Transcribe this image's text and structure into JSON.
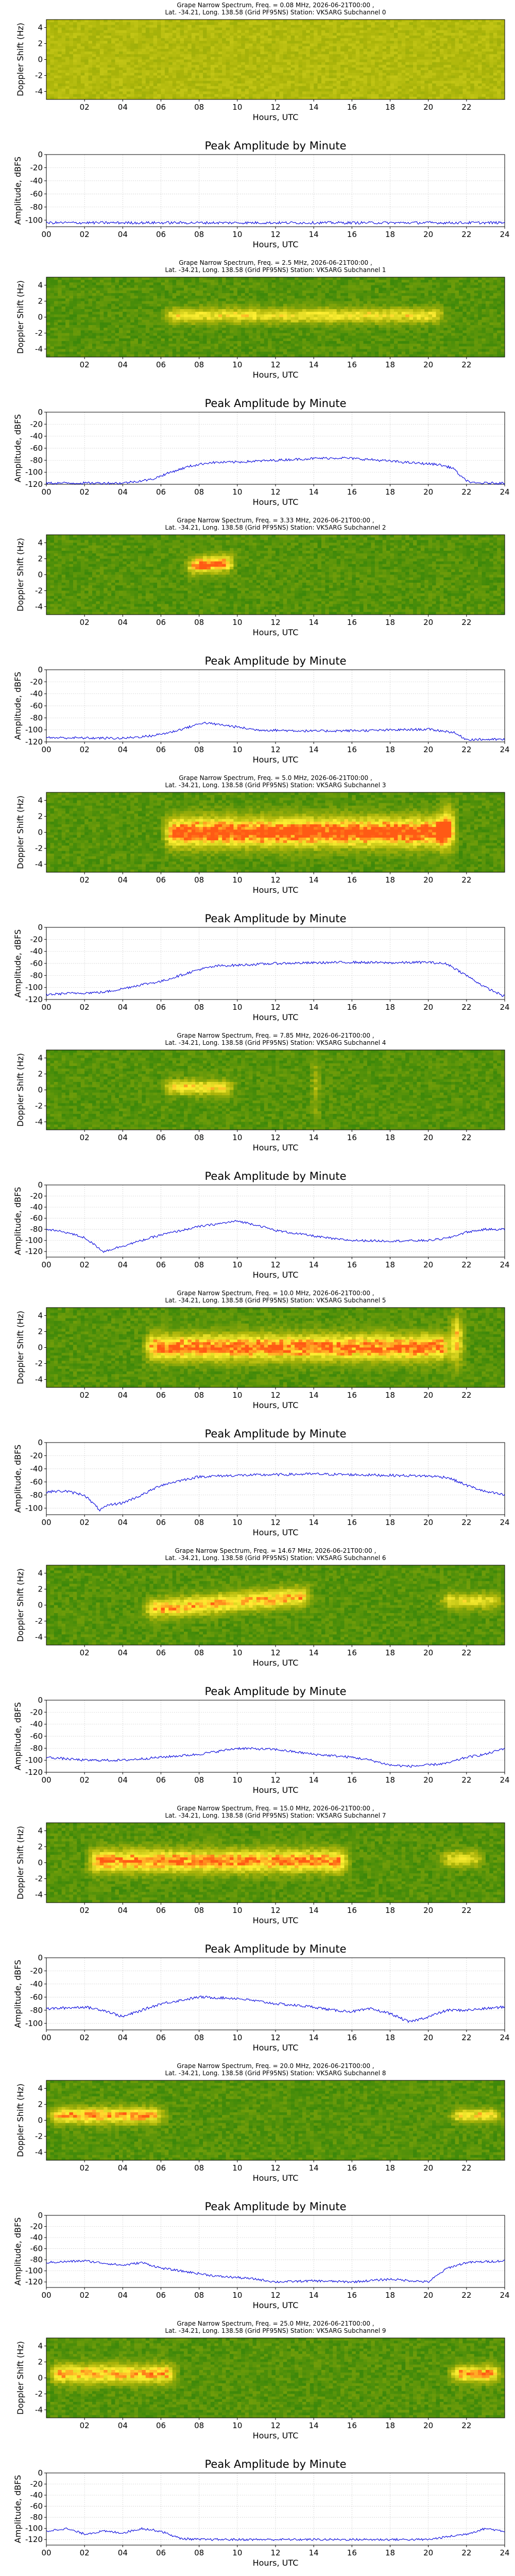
{
  "spectrogram_title_lines": [
    "Grape Narrow Spectrum, Freq. = {freq} MHz, 2026-06-21T00:00 ,",
    "Lat. -34.21, Long. 138.58 (Grid PF95NS) Station: VK5ARG Subchannel {sub}"
  ],
  "chart_data": [
    {
      "type": "heatmap",
      "freq": "0.08",
      "sub": "0",
      "xlabel": "Hours, UTC",
      "ylabel": "Doppler Shift (Hz)",
      "x_ticks": [
        "02",
        "04",
        "06",
        "08",
        "10",
        "12",
        "14",
        "16",
        "18",
        "20",
        "22"
      ],
      "y_ticks": [
        "4",
        "2",
        "0",
        "-2",
        "-4"
      ],
      "xlim": [
        0,
        24
      ],
      "ylim": [
        -5,
        5
      ],
      "signal": "none (noise)"
    },
    {
      "type": "line",
      "title": "Peak Amplitude by Minute",
      "xlabel": "Hours, UTC",
      "ylabel": "Amplitude, dBFS",
      "ylim": [
        -110,
        0
      ],
      "y_ticks": [
        "0",
        "-20",
        "-40",
        "-60",
        "-80",
        "-100"
      ],
      "x_ticks": [
        "00",
        "02",
        "04",
        "06",
        "08",
        "10",
        "12",
        "14",
        "16",
        "18",
        "20",
        "22",
        "24"
      ],
      "series": [
        {
          "x": [
            0,
            24
          ],
          "y": [
            -104,
            -104
          ]
        }
      ]
    },
    {
      "type": "heatmap",
      "freq": "2.5",
      "sub": "1",
      "xlabel": "Hours, UTC",
      "ylabel": "Doppler Shift (Hz)",
      "x_ticks": [
        "02",
        "04",
        "06",
        "08",
        "10",
        "12",
        "14",
        "16",
        "18",
        "20",
        "22"
      ],
      "y_ticks": [
        "4",
        "2",
        "0",
        "-2",
        "-4"
      ],
      "xlim": [
        0,
        24
      ],
      "ylim": [
        -5,
        5
      ],
      "signal": "band 06-21 UTC near 0 Hz"
    },
    {
      "type": "line",
      "title": "Peak Amplitude by Minute",
      "xlabel": "Hours, UTC",
      "ylabel": "Amplitude, dBFS",
      "ylim": [
        -120,
        0
      ],
      "y_ticks": [
        "0",
        "-20",
        "-40",
        "-60",
        "-80",
        "-100",
        "-120"
      ],
      "x_ticks": [
        "00",
        "02",
        "04",
        "06",
        "08",
        "10",
        "12",
        "14",
        "16",
        "18",
        "20",
        "22",
        "24"
      ],
      "series": [
        {
          "x": [
            0,
            4,
            5.5,
            6.5,
            7.5,
            8.5,
            10,
            12,
            14,
            15.5,
            17,
            19,
            20.5,
            21.3,
            21.8,
            22.3,
            24
          ],
          "y": [
            -118,
            -118,
            -112,
            -100,
            -90,
            -84,
            -83,
            -80,
            -77,
            -76,
            -79,
            -84,
            -87,
            -93,
            -110,
            -118,
            -118
          ]
        }
      ]
    },
    {
      "type": "heatmap",
      "freq": "3.33",
      "sub": "2",
      "xlabel": "Hours, UTC",
      "ylabel": "Doppler Shift (Hz)",
      "x_ticks": [
        "02",
        "04",
        "06",
        "08",
        "10",
        "12",
        "14",
        "16",
        "18",
        "20",
        "22"
      ],
      "y_ticks": [
        "4",
        "2",
        "0",
        "-2",
        "-4"
      ],
      "xlim": [
        0,
        24
      ],
      "ylim": [
        -5,
        5
      ],
      "signal": "blob 07-10 UTC"
    },
    {
      "type": "line",
      "title": "Peak Amplitude by Minute",
      "xlabel": "Hours, UTC",
      "ylabel": "Amplitude, dBFS",
      "ylim": [
        -120,
        0
      ],
      "y_ticks": [
        "0",
        "-20",
        "-40",
        "-60",
        "-80",
        "-100",
        "-120"
      ],
      "x_ticks": [
        "00",
        "02",
        "04",
        "06",
        "08",
        "10",
        "12",
        "14",
        "16",
        "18",
        "20",
        "22",
        "24"
      ],
      "series": [
        {
          "x": [
            0,
            4,
            5.5,
            6.5,
            7.5,
            8.2,
            9.5,
            11,
            14,
            17,
            20,
            21.3,
            22,
            24
          ],
          "y": [
            -113,
            -114,
            -110,
            -104,
            -95,
            -88,
            -93,
            -100,
            -102,
            -101,
            -99,
            -104,
            -116,
            -116
          ]
        }
      ]
    },
    {
      "type": "heatmap",
      "freq": "5.0",
      "sub": "3",
      "xlabel": "Hours, UTC",
      "ylabel": "Doppler Shift (Hz)",
      "x_ticks": [
        "02",
        "04",
        "06",
        "08",
        "10",
        "12",
        "14",
        "16",
        "18",
        "20",
        "22"
      ],
      "y_ticks": [
        "4",
        "2",
        "0",
        "-2",
        "-4"
      ],
      "xlim": [
        0,
        24
      ],
      "ylim": [
        -5,
        5
      ],
      "signal": "strong band 06-21.5 UTC"
    },
    {
      "type": "line",
      "title": "Peak Amplitude by Minute",
      "xlabel": "Hours, UTC",
      "ylabel": "Amplitude, dBFS",
      "ylim": [
        -120,
        0
      ],
      "y_ticks": [
        "0",
        "-20",
        "-40",
        "-60",
        "-80",
        "-100",
        "-120"
      ],
      "x_ticks": [
        "00",
        "02",
        "04",
        "06",
        "08",
        "10",
        "12",
        "14",
        "16",
        "18",
        "20",
        "22",
        "24"
      ],
      "series": [
        {
          "x": [
            0,
            1,
            3,
            4,
            5,
            6,
            7,
            8,
            9,
            10,
            12,
            14,
            16,
            18,
            20,
            21,
            22,
            23,
            24
          ],
          "y": [
            -112,
            -110,
            -108,
            -102,
            -95,
            -90,
            -80,
            -70,
            -64,
            -63,
            -60,
            -59,
            -58,
            -59,
            -58,
            -61,
            -80,
            -100,
            -115
          ]
        }
      ]
    },
    {
      "type": "heatmap",
      "freq": "7.85",
      "sub": "4",
      "xlabel": "Hours, UTC",
      "ylabel": "Doppler Shift (Hz)",
      "x_ticks": [
        "02",
        "04",
        "06",
        "08",
        "10",
        "12",
        "14",
        "16",
        "18",
        "20",
        "22"
      ],
      "y_ticks": [
        "4",
        "2",
        "0",
        "-2",
        "-4"
      ],
      "xlim": [
        0,
        24
      ],
      "ylim": [
        -5,
        5
      ],
      "signal": "patchy 06-15 UTC"
    },
    {
      "type": "line",
      "title": "Peak Amplitude by Minute",
      "xlabel": "Hours, UTC",
      "ylabel": "Amplitude, dBFS",
      "ylim": [
        -130,
        0
      ],
      "y_ticks": [
        "0",
        "-20",
        "-40",
        "-60",
        "-80",
        "-100",
        "-120"
      ],
      "x_ticks": [
        "00",
        "02",
        "04",
        "06",
        "08",
        "10",
        "12",
        "14",
        "16",
        "18",
        "20",
        "22",
        "24"
      ],
      "series": [
        {
          "x": [
            0,
            1,
            2,
            3,
            4,
            5,
            6,
            8,
            10,
            11,
            12,
            14,
            15,
            16,
            18,
            20,
            21,
            22,
            23,
            24
          ],
          "y": [
            -80,
            -85,
            -95,
            -120,
            -110,
            -100,
            -90,
            -75,
            -65,
            -72,
            -82,
            -92,
            -97,
            -100,
            -101,
            -100,
            -96,
            -85,
            -80,
            -80
          ]
        }
      ]
    },
    {
      "type": "heatmap",
      "freq": "10.0",
      "sub": "5",
      "xlabel": "Hours, UTC",
      "ylabel": "Doppler Shift (Hz)",
      "x_ticks": [
        "02",
        "04",
        "06",
        "08",
        "10",
        "12",
        "14",
        "16",
        "18",
        "20",
        "22"
      ],
      "y_ticks": [
        "4",
        "2",
        "0",
        "-2",
        "-4"
      ],
      "xlim": [
        0,
        24
      ],
      "ylim": [
        -5,
        5
      ],
      "signal": "band 05-22 UTC"
    },
    {
      "type": "line",
      "title": "Peak Amplitude by Minute",
      "xlabel": "Hours, UTC",
      "ylabel": "Amplitude, dBFS",
      "ylim": [
        -110,
        0
      ],
      "y_ticks": [
        "0",
        "-20",
        "-40",
        "-60",
        "-80",
        "-100"
      ],
      "x_ticks": [
        "00",
        "02",
        "04",
        "06",
        "08",
        "10",
        "12",
        "14",
        "16",
        "18",
        "20",
        "22",
        "24"
      ],
      "series": [
        {
          "x": [
            0,
            1,
            2,
            2.8,
            3.3,
            4,
            5,
            6,
            7,
            8,
            10,
            12,
            14,
            16,
            18,
            20,
            21,
            22,
            23,
            24
          ],
          "y": [
            -75,
            -74,
            -80,
            -103,
            -95,
            -92,
            -80,
            -65,
            -58,
            -52,
            -50,
            -49,
            -48,
            -49,
            -50,
            -51,
            -53,
            -65,
            -75,
            -80
          ]
        }
      ]
    },
    {
      "type": "heatmap",
      "freq": "14.67",
      "sub": "6",
      "xlabel": "Hours, UTC",
      "ylabel": "Doppler Shift (Hz)",
      "x_ticks": [
        "02",
        "04",
        "06",
        "08",
        "10",
        "12",
        "14",
        "16",
        "18",
        "20",
        "22"
      ],
      "y_ticks": [
        "4",
        "2",
        "0",
        "-2",
        "-4"
      ],
      "xlim": [
        0,
        24
      ],
      "ylim": [
        -5,
        5
      ],
      "signal": "rising band 04-14 UTC"
    },
    {
      "type": "line",
      "title": "Peak Amplitude by Minute",
      "xlabel": "Hours, UTC",
      "ylabel": "Amplitude, dBFS",
      "ylim": [
        -120,
        0
      ],
      "y_ticks": [
        "0",
        "-20",
        "-40",
        "-60",
        "-80",
        "-100",
        "-120"
      ],
      "x_ticks": [
        "00",
        "02",
        "04",
        "06",
        "08",
        "10",
        "12",
        "14",
        "16",
        "18",
        "20",
        "22",
        "24"
      ],
      "series": [
        {
          "x": [
            0,
            2,
            4,
            6,
            8,
            10,
            12,
            14,
            16,
            17,
            18,
            19,
            20,
            21,
            22,
            23,
            24
          ],
          "y": [
            -95,
            -100,
            -100,
            -95,
            -90,
            -80,
            -82,
            -90,
            -95,
            -100,
            -108,
            -110,
            -108,
            -105,
            -95,
            -90,
            -80
          ]
        }
      ]
    },
    {
      "type": "heatmap",
      "freq": "15.0",
      "sub": "7",
      "xlabel": "Hours, UTC",
      "ylabel": "Doppler Shift (Hz)",
      "x_ticks": [
        "02",
        "04",
        "06",
        "08",
        "10",
        "12",
        "14",
        "16",
        "18",
        "20",
        "22"
      ],
      "y_ticks": [
        "4",
        "2",
        "0",
        "-2",
        "-4"
      ],
      "xlim": [
        0,
        24
      ],
      "ylim": [
        -5,
        5
      ],
      "signal": "band 02-16 UTC"
    },
    {
      "type": "line",
      "title": "Peak Amplitude by Minute",
      "xlabel": "Hours, UTC",
      "ylabel": "Amplitude, dBFS",
      "ylim": [
        -110,
        0
      ],
      "y_ticks": [
        "0",
        "-20",
        "-40",
        "-60",
        "-80",
        "-100"
      ],
      "x_ticks": [
        "00",
        "02",
        "04",
        "06",
        "08",
        "10",
        "12",
        "14",
        "16",
        "18",
        "20",
        "22",
        "24"
      ],
      "series": [
        {
          "x": [
            0,
            2,
            3,
            4,
            6,
            8,
            10,
            12,
            14,
            15,
            16,
            17,
            18,
            19,
            20,
            21,
            22,
            24
          ],
          "y": [
            -78,
            -75,
            -80,
            -90,
            -70,
            -60,
            -62,
            -70,
            -75,
            -80,
            -82,
            -78,
            -85,
            -98,
            -90,
            -80,
            -80,
            -75
          ]
        }
      ]
    },
    {
      "type": "heatmap",
      "freq": "20.0",
      "sub": "8",
      "xlabel": "Hours, UTC",
      "ylabel": "Doppler Shift (Hz)",
      "x_ticks": [
        "02",
        "04",
        "06",
        "08",
        "10",
        "12",
        "14",
        "16",
        "18",
        "20",
        "22"
      ],
      "y_ticks": [
        "4",
        "2",
        "0",
        "-2",
        "-4"
      ],
      "xlim": [
        0,
        24
      ],
      "ylim": [
        -5,
        5
      ],
      "signal": "band 00-06 and 21-24 UTC"
    },
    {
      "type": "line",
      "title": "Peak Amplitude by Minute",
      "xlabel": "Hours, UTC",
      "ylabel": "Amplitude, dBFS",
      "ylim": [
        -130,
        0
      ],
      "y_ticks": [
        "0",
        "-20",
        "-40",
        "-60",
        "-80",
        "-100",
        "-120"
      ],
      "x_ticks": [
        "00",
        "02",
        "04",
        "06",
        "08",
        "10",
        "12",
        "14",
        "16",
        "18",
        "20",
        "22",
        "24"
      ],
      "series": [
        {
          "x": [
            0,
            2,
            4,
            5,
            6,
            7,
            8,
            9,
            10,
            11,
            12,
            14,
            16,
            18,
            20,
            21,
            22,
            24
          ],
          "y": [
            -85,
            -82,
            -90,
            -85,
            -95,
            -100,
            -105,
            -110,
            -112,
            -115,
            -120,
            -118,
            -120,
            -115,
            -120,
            -95,
            -85,
            -82
          ]
        }
      ]
    },
    {
      "type": "heatmap",
      "freq": "25.0",
      "sub": "9",
      "xlabel": "Hours, UTC",
      "ylabel": "Doppler Shift (Hz)",
      "x_ticks": [
        "02",
        "04",
        "06",
        "08",
        "10",
        "12",
        "14",
        "16",
        "18",
        "20",
        "22"
      ],
      "y_ticks": [
        "4",
        "2",
        "0",
        "-2",
        "-4"
      ],
      "xlim": [
        0,
        24
      ],
      "ylim": [
        -5,
        5
      ],
      "signal": "patchy 00-07 and 21-24 UTC"
    },
    {
      "type": "line",
      "title": "Peak Amplitude by Minute",
      "xlabel": "Hours, UTC",
      "ylabel": "Amplitude, dBFS",
      "ylim": [
        -130,
        0
      ],
      "y_ticks": [
        "0",
        "-20",
        "-40",
        "-60",
        "-80",
        "-100",
        "-120"
      ],
      "x_ticks": [
        "00",
        "02",
        "04",
        "06",
        "08",
        "10",
        "12",
        "14",
        "16",
        "18",
        "20",
        "22",
        "24"
      ],
      "series": [
        {
          "x": [
            0,
            1,
            2,
            3,
            4,
            5,
            6,
            7,
            8,
            10,
            12,
            14,
            16,
            18,
            20,
            21,
            22,
            23,
            24
          ],
          "y": [
            -105,
            -100,
            -110,
            -105,
            -108,
            -100,
            -105,
            -118,
            -120,
            -120,
            -120,
            -120,
            -120,
            -120,
            -120,
            -115,
            -110,
            -100,
            -105
          ]
        }
      ]
    }
  ]
}
